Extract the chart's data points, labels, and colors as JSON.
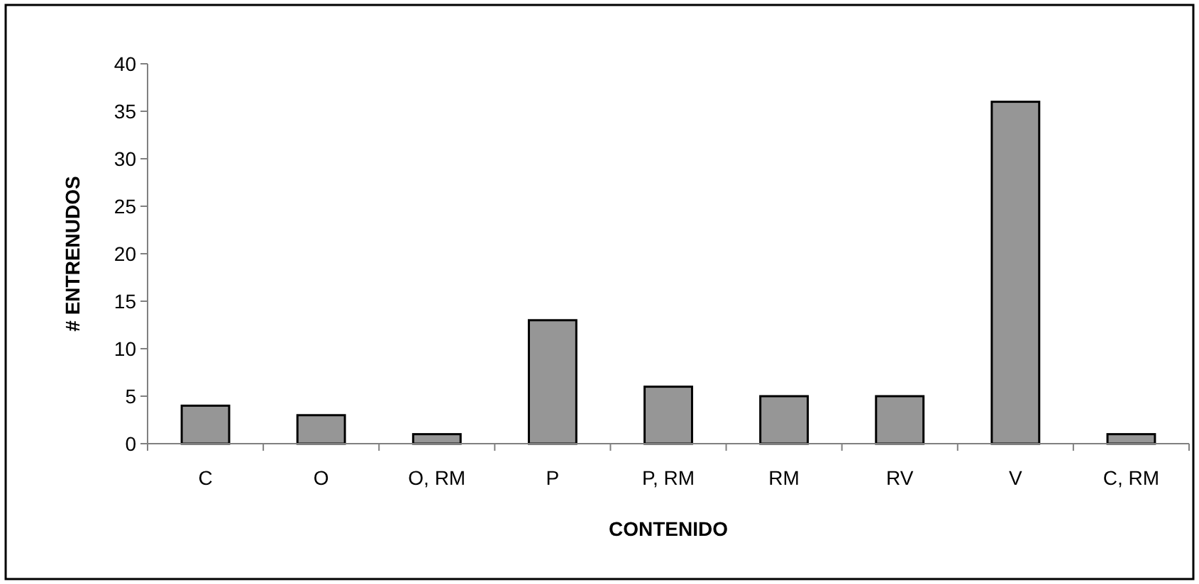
{
  "chart_data": {
    "type": "bar",
    "xlabel": "CONTENIDO",
    "ylabel": "# ENTRENUDOS",
    "categories": [
      "C",
      "O",
      "O, RM",
      "P",
      "P, RM",
      "RM",
      "RV",
      "V",
      "C, RM"
    ],
    "values": [
      4,
      3,
      1,
      13,
      6,
      5,
      5,
      36,
      1
    ],
    "color": "#969696",
    "ylim": [
      0,
      40
    ],
    "yticks": [
      0,
      5,
      10,
      15,
      20,
      25,
      30,
      35,
      40
    ],
    "grid": false
  }
}
